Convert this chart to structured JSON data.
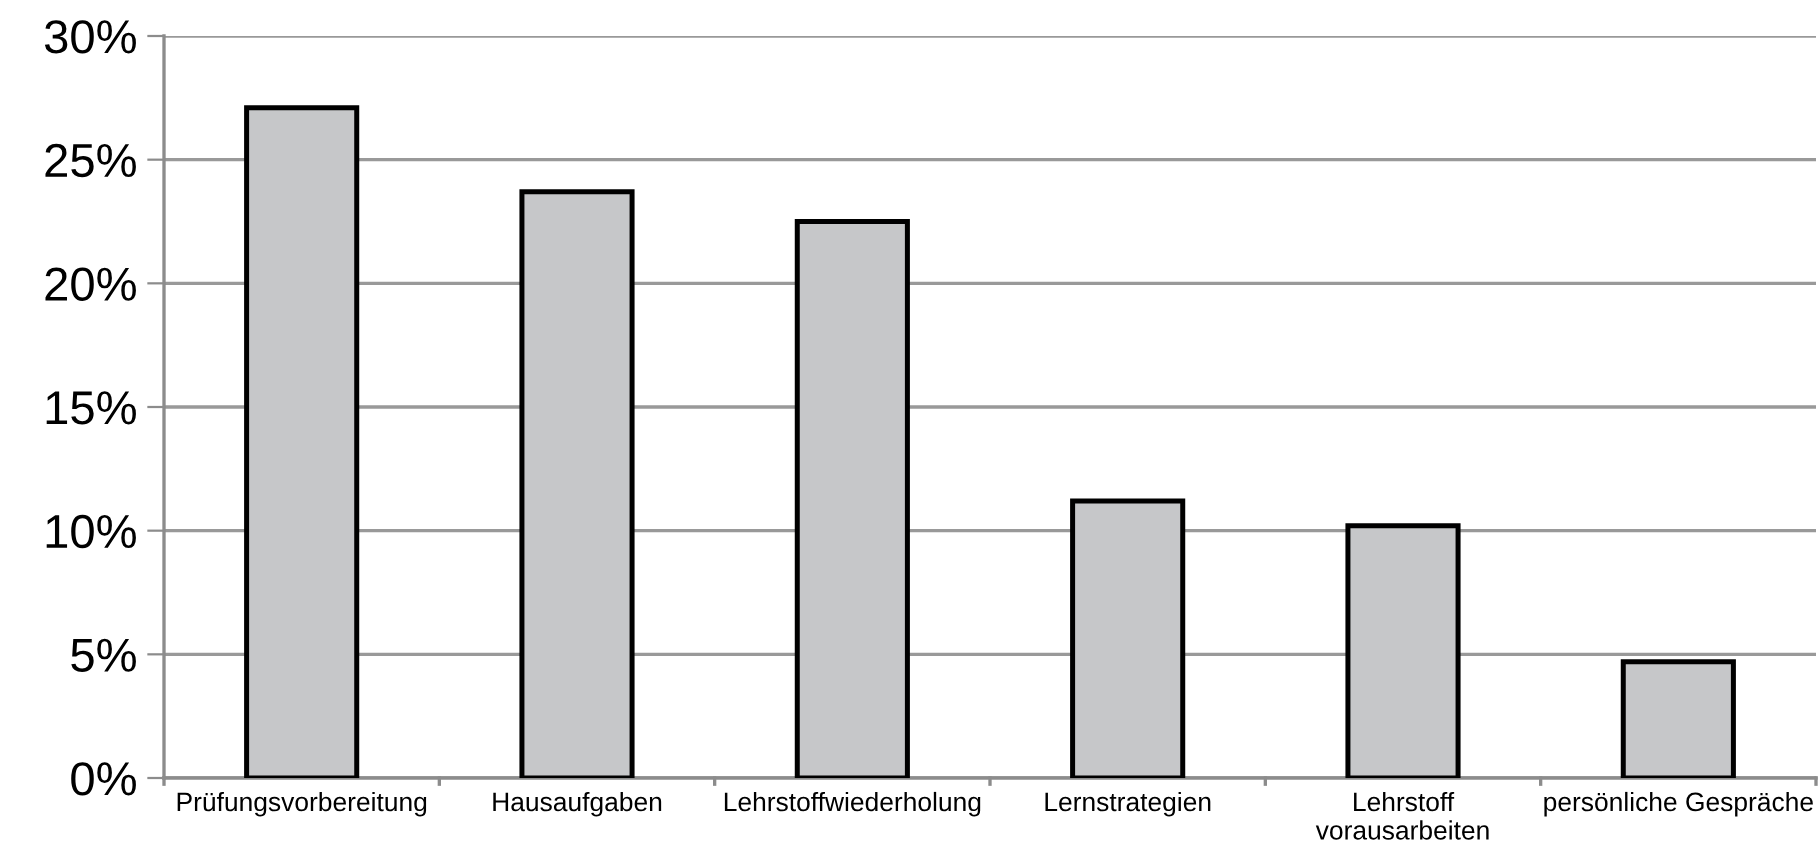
{
  "chart_data": {
    "type": "bar",
    "categories": [
      "Prüfungsvorbereitung",
      "Hausaufgaben",
      "Lehrstoffwiederholung",
      "Lernstrategien",
      "Lehrstoff\nvorausarbeiten",
      "persönliche Gespräche"
    ],
    "values": [
      27.1,
      23.7,
      22.5,
      11.2,
      10.2,
      4.7
    ],
    "color": "#c6c7c9",
    "ylim": [
      0,
      30
    ],
    "yticks": [
      {
        "value": 0,
        "label": "0%"
      },
      {
        "value": 5,
        "label": "5%"
      },
      {
        "value": 10,
        "label": "10%"
      },
      {
        "value": 15,
        "label": "15%"
      },
      {
        "value": 20,
        "label": "20%"
      },
      {
        "value": 25,
        "label": "25%"
      },
      {
        "value": 30,
        "label": "30%"
      }
    ],
    "grid": "y"
  }
}
